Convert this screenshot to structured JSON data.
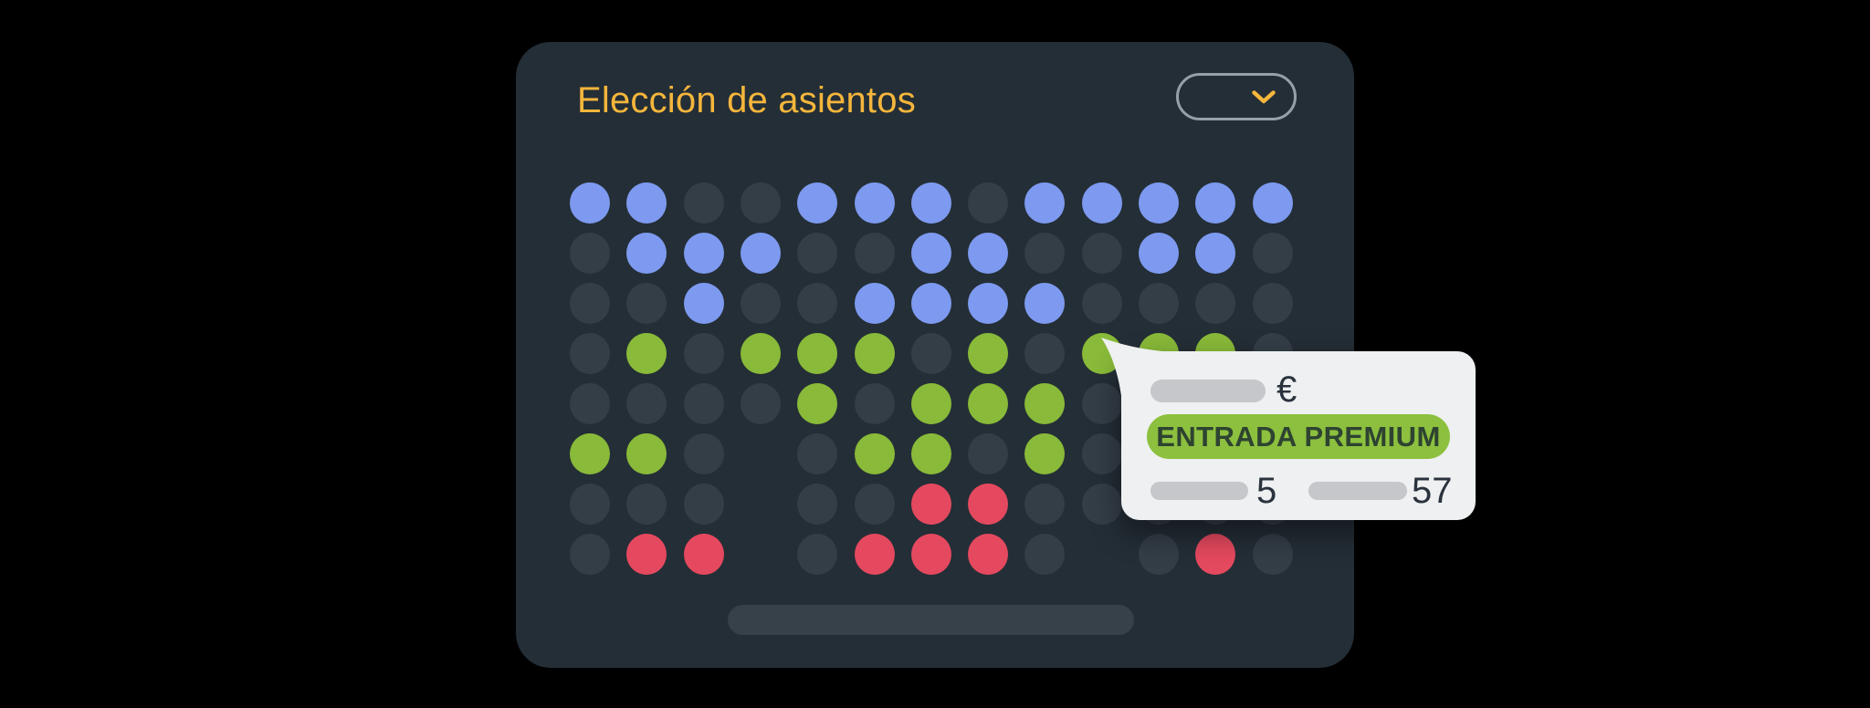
{
  "colors": {
    "page_background": "#000000",
    "panel_background": "#242e36",
    "accent_amber": "#f5b63c",
    "dropdown_border": "#97a0a7",
    "screen_bar": "#37414a",
    "seat_available": "#7d9af0",
    "seat_premium": "#89ba39",
    "seat_occupied": "#e5495f",
    "seat_unavailable": "#343e47",
    "tooltip_background": "#eef0f1",
    "placeholder_bar": "#c5c7ca",
    "badge_background": "#8cc03e",
    "badge_text": "#2e4331",
    "tooltip_text": "#2a333d"
  },
  "header": {
    "title": "Elección de asientos",
    "dropdown": {
      "selected_value": "",
      "icon": "chevron-down"
    }
  },
  "seat_map": {
    "rows": 8,
    "cols": 13,
    "codes": {
      "A": "available",
      "P": "premium",
      "O": "occupied",
      "E": "unavailable",
      "X": "none"
    },
    "grid": [
      "AAEEAAAEAAAAA",
      "EAAAEEAAEEAAE",
      "EEAEEAAAAEEEE",
      "EPEPPPEPEPPPE",
      "EEEEPEPPPEEEE",
      "PPEXEPPEPEEEE",
      "EEEXEEOOEEEEE",
      "EOOXEOOOEXEOE"
    ]
  },
  "tooltip": {
    "currency_symbol": "€",
    "ticket_type_label": "ENTRADA PREMIUM",
    "left_value": "5",
    "right_value": "57"
  }
}
